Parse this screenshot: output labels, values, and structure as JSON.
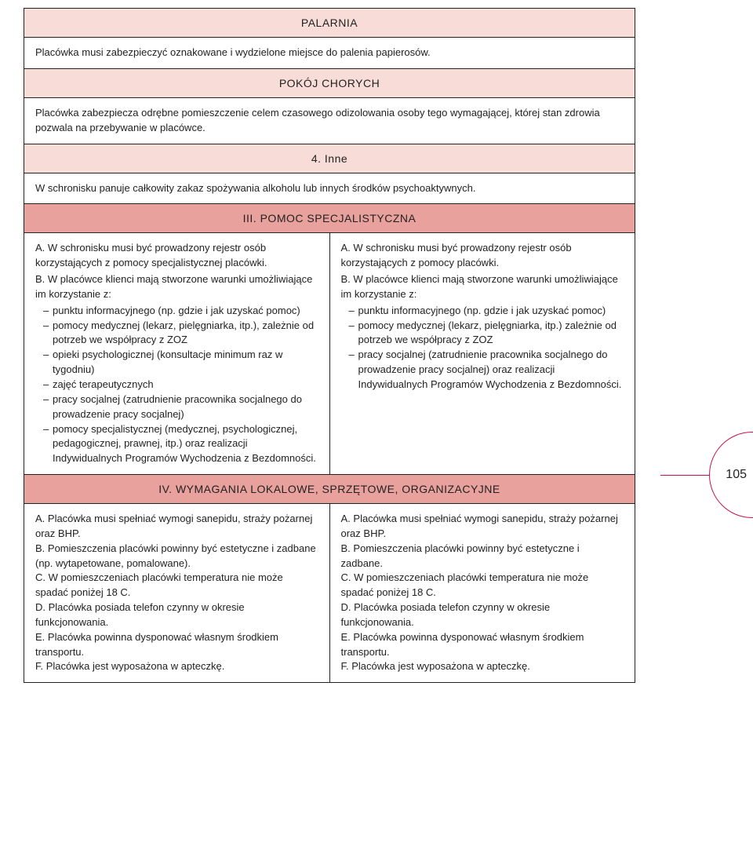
{
  "page_number": "105",
  "colors": {
    "border": "#222222",
    "header_light": "#f8dcd8",
    "header_strong": "#e8a19c",
    "accent": "#c7144e",
    "text": "#222222",
    "background": "#ffffff"
  },
  "sections": {
    "palarnia": {
      "title": "PALARNIA",
      "body": "Placówka musi zabezpieczyć oznakowane i wydzielone miejsce do palenia papierosów."
    },
    "pokoj": {
      "title": "POKÓJ CHORYCH",
      "body": "Placówka zabezpiecza odrębne pomieszczenie celem czasowego odizolowania osoby tego wymagającej, której stan zdrowia pozwala na przebywanie w placówce."
    },
    "inne": {
      "title": "4. Inne",
      "body": "W schronisku panuje całkowity zakaz spożywania alkoholu lub innych środków psychoaktywnych."
    },
    "pomoc": {
      "title": "III. POMOC SPECJALISTYCZNA",
      "left": {
        "a": "A. W schronisku musi być prowadzony rejestr osób korzystających z pomocy specjalistycznej placówki.",
        "b_intro": "B. W placówce klienci mają stworzone warunki umożliwiające im korzystanie z:",
        "b_items": [
          "punktu informacyjnego (np. gdzie i jak uzyskać pomoc)",
          "pomocy medycznej (lekarz, pielęgniarka, itp.), zależnie od potrzeb we współpracy z ZOZ",
          "opieki psychologicznej (konsultacje minimum raz w tygodniu)",
          "zajęć terapeutycznych",
          "pracy socjalnej (zatrudnienie pracownika socjalnego do prowadzenie pracy socjalnej)",
          "pomocy specjalistycznej (medycznej, psychologicznej, pedagogicznej, prawnej, itp.) oraz realizacji Indywidualnych Programów Wychodzenia z Bezdomności."
        ]
      },
      "right": {
        "a": "A. W schronisku musi być prowadzony rejestr osób korzystających z pomocy placówki.",
        "b_intro": "B. W placówce klienci mają stworzone warunki umożliwiające im korzystanie z:",
        "b_items": [
          "punktu informacyjnego (np. gdzie i jak uzyskać pomoc)",
          "pomocy medycznej (lekarz, pielęgniarka, itp.) zależnie od potrzeb we współpracy z ZOZ",
          "pracy socjalnej (zatrudnienie pracownika socjalnego do prowadzenie pracy socjalnej) oraz realizacji Indywidualnych Programów Wychodzenia z Bezdomności."
        ]
      }
    },
    "wymagania": {
      "title": "IV. WYMAGANIA LOKALOWE, SPRZĘTOWE, ORGANIZACYJNE",
      "left": [
        "A. Placówka musi spełniać wymogi sanepidu, straży pożarnej oraz BHP.",
        "B. Pomieszczenia placówki powinny być estetyczne i zadbane (np. wytapetowane, pomalowane).",
        "C. W pomieszczeniach placówki temperatura nie może spadać poniżej 18 C.",
        "D. Placówka posiada telefon czynny w okresie funkcjonowania.",
        "E. Placówka powinna dysponować własnym środkiem transportu.",
        "F. Placówka jest wyposażona w apteczkę."
      ],
      "right": [
        "A. Placówka musi spełniać wymogi sanepidu, straży pożarnej oraz BHP.",
        "B. Pomieszczenia placówki powinny być estetyczne i zadbane.",
        "C. W pomieszczeniach placówki temperatura nie może spadać poniżej 18 C.",
        "D. Placówka posiada telefon czynny w okresie funkcjonowania.",
        "E. Placówka powinna dysponować własnym środkiem transportu.",
        "F. Placówka jest wyposażona w apteczkę."
      ]
    }
  }
}
